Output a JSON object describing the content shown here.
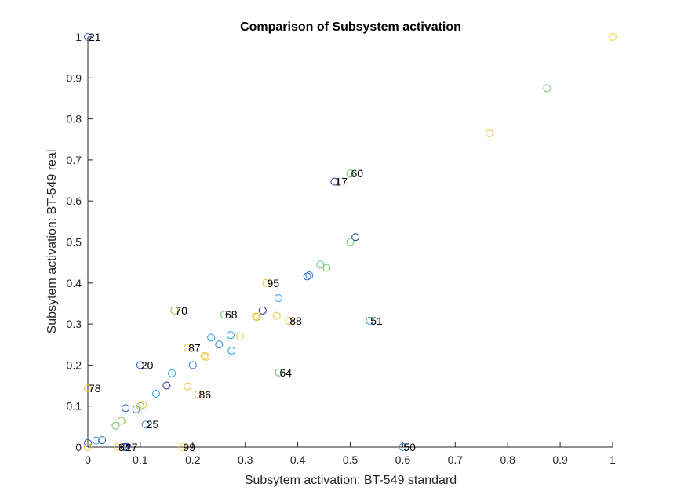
{
  "chart_data": {
    "type": "scatter",
    "title": "Comparison of Subsystem activation",
    "xlabel": "Subsytem activation: BT-549 standard",
    "ylabel": "Subsytem activation: BT-549 real",
    "xlim": [
      0,
      1
    ],
    "ylim": [
      0,
      1
    ],
    "xticks": [
      0,
      0.1,
      0.2,
      0.3,
      0.4,
      0.5,
      0.6,
      0.7,
      0.8,
      0.9,
      1
    ],
    "yticks": [
      0,
      0.1,
      0.2,
      0.3,
      0.4,
      0.5,
      0.6,
      0.7,
      0.8,
      0.9,
      1
    ],
    "xtick_labels": [
      "0",
      "0.1",
      "0.2",
      "0.3",
      "0.4",
      "0.5",
      "0.6",
      "0.7",
      "0.8",
      "0.9",
      "1"
    ],
    "ytick_labels": [
      "0",
      "0.1",
      "0.2",
      "0.3",
      "0.4",
      "0.5",
      "0.6",
      "0.7",
      "0.8",
      "0.9",
      "1"
    ],
    "grid": false,
    "marker": "open-circle",
    "points": [
      {
        "x": 0.0,
        "y": 1.0,
        "label": "21",
        "color": "#2f59c4"
      },
      {
        "x": 1.0,
        "y": 1.0,
        "label": "",
        "color": "#f9d22a"
      },
      {
        "x": 0.875,
        "y": 0.875,
        "label": "",
        "color": "#63c466"
      },
      {
        "x": 0.765,
        "y": 0.765,
        "label": "",
        "color": "#f2c132"
      },
      {
        "x": 0.5,
        "y": 0.667,
        "label": "60",
        "color": "#63c466"
      },
      {
        "x": 0.47,
        "y": 0.647,
        "label": "17",
        "color": "#2a2d9c"
      },
      {
        "x": 0.51,
        "y": 0.512,
        "label": "",
        "color": "#2a2d9c"
      },
      {
        "x": 0.5,
        "y": 0.5,
        "label": "",
        "color": "#63c466"
      },
      {
        "x": 0.443,
        "y": 0.445,
        "label": "",
        "color": "#63c466"
      },
      {
        "x": 0.455,
        "y": 0.437,
        "label": "",
        "color": "#63c466"
      },
      {
        "x": 0.418,
        "y": 0.416,
        "label": "",
        "color": "#2f59c4"
      },
      {
        "x": 0.422,
        "y": 0.419,
        "label": "",
        "color": "#2f7fe0"
      },
      {
        "x": 0.34,
        "y": 0.4,
        "label": "95",
        "color": "#f2c132"
      },
      {
        "x": 0.363,
        "y": 0.363,
        "label": "",
        "color": "#1aa0e0"
      },
      {
        "x": 0.165,
        "y": 0.333,
        "label": "70",
        "color": "#9ec12e"
      },
      {
        "x": 0.26,
        "y": 0.323,
        "label": "68",
        "color": "#63c466"
      },
      {
        "x": 0.333,
        "y": 0.333,
        "label": "",
        "color": "#2a2d9c"
      },
      {
        "x": 0.32,
        "y": 0.318,
        "label": "",
        "color": "#f2c132"
      },
      {
        "x": 0.322,
        "y": 0.317,
        "label": "",
        "color": "#f2c132"
      },
      {
        "x": 0.36,
        "y": 0.32,
        "label": "",
        "color": "#f2c132"
      },
      {
        "x": 0.383,
        "y": 0.308,
        "label": "88",
        "color": "#f2c132"
      },
      {
        "x": 0.537,
        "y": 0.308,
        "label": "51",
        "color": "#1aa0e0"
      },
      {
        "x": 0.272,
        "y": 0.273,
        "label": "",
        "color": "#1aa0e0"
      },
      {
        "x": 0.29,
        "y": 0.27,
        "label": "",
        "color": "#f2c132"
      },
      {
        "x": 0.235,
        "y": 0.267,
        "label": "",
        "color": "#1aa0e0"
      },
      {
        "x": 0.25,
        "y": 0.25,
        "label": "",
        "color": "#2f7fe0"
      },
      {
        "x": 0.19,
        "y": 0.242,
        "label": "87",
        "color": "#f2c132"
      },
      {
        "x": 0.274,
        "y": 0.235,
        "label": "",
        "color": "#1aa0e0"
      },
      {
        "x": 0.222,
        "y": 0.222,
        "label": "",
        "color": "#f2c132"
      },
      {
        "x": 0.225,
        "y": 0.22,
        "label": "",
        "color": "#f2c132"
      },
      {
        "x": 0.1,
        "y": 0.2,
        "label": "20",
        "color": "#2f59c4"
      },
      {
        "x": 0.2,
        "y": 0.2,
        "label": "",
        "color": "#2f7fe0"
      },
      {
        "x": 0.364,
        "y": 0.182,
        "label": "64",
        "color": "#63c466"
      },
      {
        "x": 0.16,
        "y": 0.18,
        "label": "",
        "color": "#1aa0e0"
      },
      {
        "x": 0.15,
        "y": 0.15,
        "label": "",
        "color": "#2a2d9c"
      },
      {
        "x": 0.19,
        "y": 0.148,
        "label": "",
        "color": "#f2c132"
      },
      {
        "x": 0.0,
        "y": 0.143,
        "label": "78",
        "color": "#f2c132"
      },
      {
        "x": 0.13,
        "y": 0.13,
        "label": "",
        "color": "#1aa0e0"
      },
      {
        "x": 0.21,
        "y": 0.128,
        "label": "86",
        "color": "#f2c132"
      },
      {
        "x": 0.105,
        "y": 0.103,
        "label": "",
        "color": "#f2c132"
      },
      {
        "x": 0.1,
        "y": 0.1,
        "label": "",
        "color": "#9ec12e"
      },
      {
        "x": 0.072,
        "y": 0.095,
        "label": "",
        "color": "#2f59c4"
      },
      {
        "x": 0.092,
        "y": 0.092,
        "label": "",
        "color": "#2f7fe0"
      },
      {
        "x": 0.064,
        "y": 0.064,
        "label": "",
        "color": "#9ec12e"
      },
      {
        "x": 0.11,
        "y": 0.055,
        "label": "25",
        "color": "#2f7fe0"
      },
      {
        "x": 0.053,
        "y": 0.052,
        "label": "",
        "color": "#63c466"
      },
      {
        "x": 0.027,
        "y": 0.017,
        "label": "",
        "color": "#2f59c4"
      },
      {
        "x": 0.016,
        "y": 0.016,
        "label": "",
        "color": "#1aa0e0"
      },
      {
        "x": 0.0,
        "y": 0.01,
        "label": "",
        "color": "#2f59c4"
      },
      {
        "x": 0.0,
        "y": 0.0,
        "label": "",
        "color": "#f2c132"
      },
      {
        "x": 0.057,
        "y": 0.0,
        "label": "84",
        "color": "#f2c132"
      },
      {
        "x": 0.07,
        "y": 0.0,
        "label": "27",
        "color": "#2a2d9c"
      },
      {
        "x": 0.074,
        "y": 0.0,
        "label": "",
        "color": "#2f59c4"
      },
      {
        "x": 0.18,
        "y": 0.0,
        "label": "99",
        "color": "#f9d22a"
      },
      {
        "x": 0.6,
        "y": 0.0,
        "label": "50",
        "color": "#1aa0e0"
      }
    ]
  }
}
